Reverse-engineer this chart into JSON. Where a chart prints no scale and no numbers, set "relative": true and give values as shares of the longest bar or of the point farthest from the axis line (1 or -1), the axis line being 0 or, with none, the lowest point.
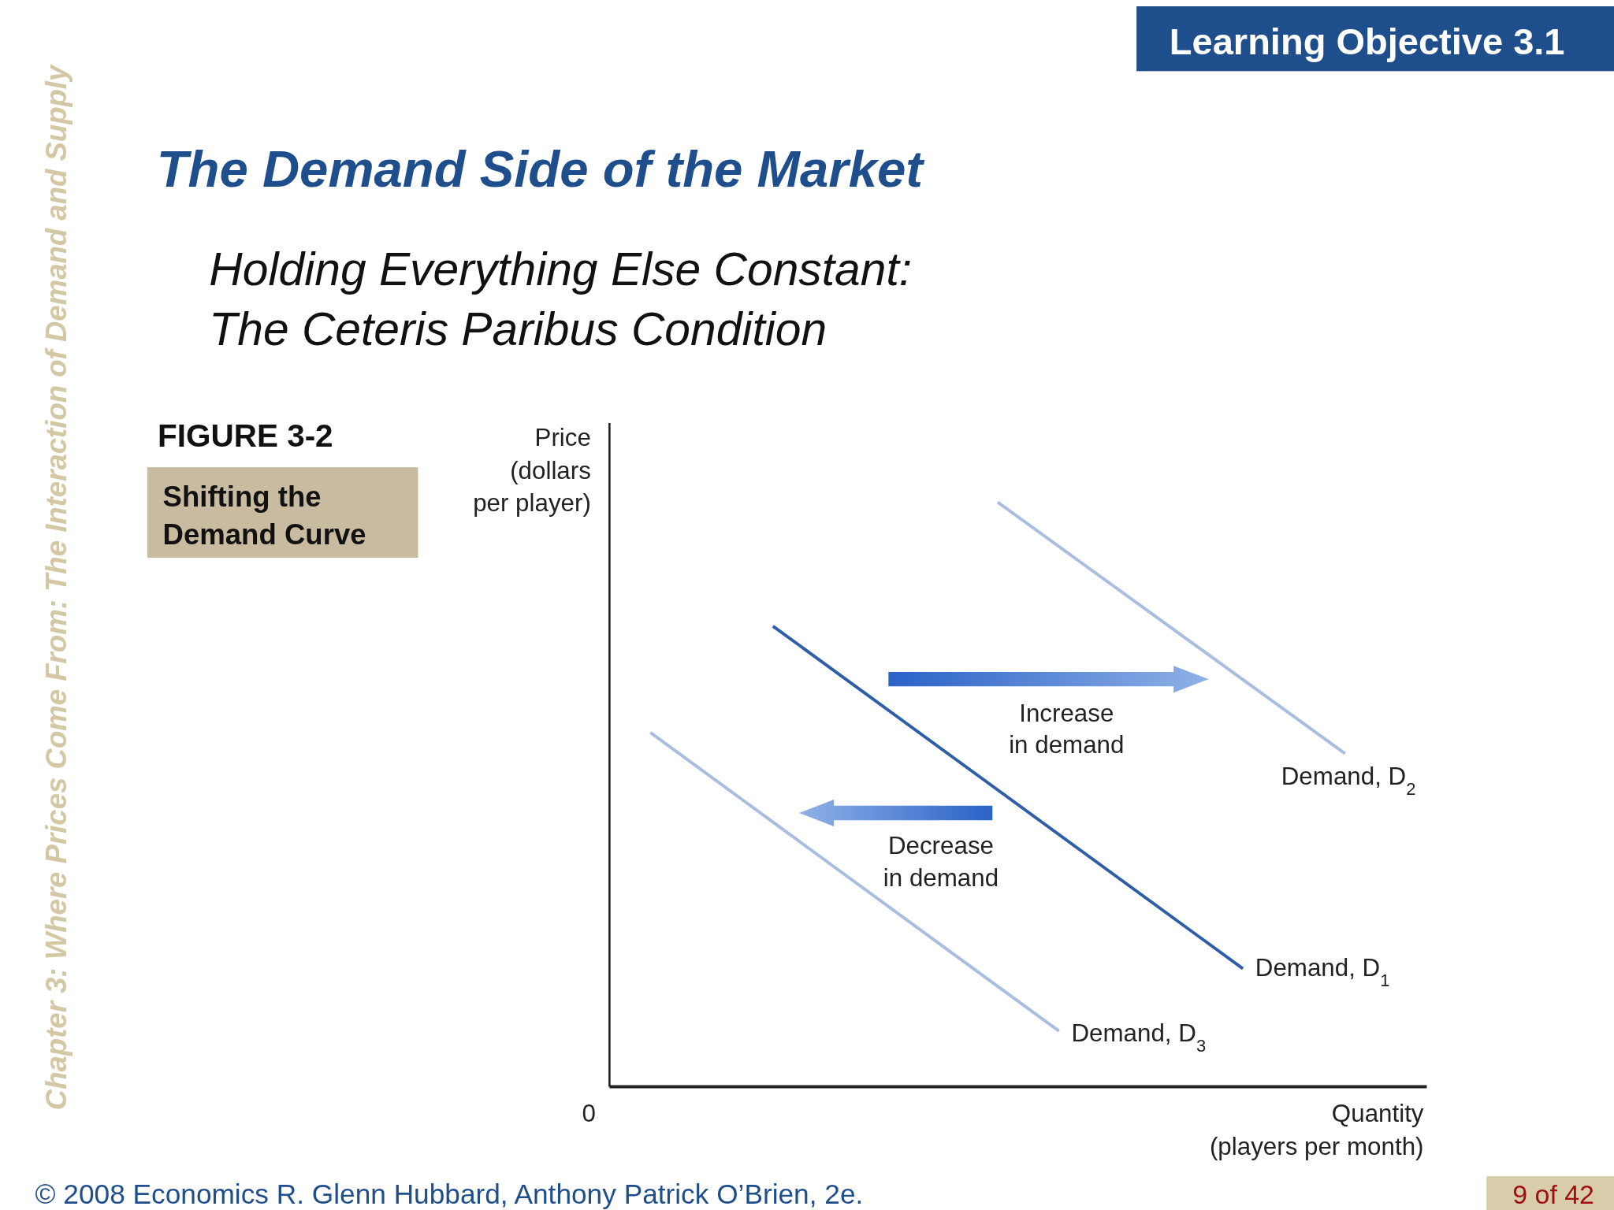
{
  "chart_data": {
    "type": "line",
    "relative": true,
    "title": "The Demand Side of the Market",
    "subtitle": "Holding Everything Else Constant:\nThe Ceteris Paribus Condition",
    "xlabel": "Quantity\n(players per month)",
    "ylabel": "Price\n(dollars\nper player)",
    "marker": "none",
    "line_style": "solid",
    "categories": [
      null,
      null,
      null,
      null,
      null,
      null,
      null,
      null,
      null,
      null,
      null,
      null,
      null,
      null,
      null,
      null,
      null,
      null,
      null,
      null,
      null,
      null,
      null,
      null,
      null,
      null,
      null,
      null,
      null,
      null,
      null,
      null,
      null,
      null,
      null,
      null,
      null,
      null,
      null,
      null,
      null
    ],
    "series": [
      {
        "name": "Demand, D$_{1}$",
        "color": "#2f5ea8",
        "values": [
          null,
          null,
          null,
          null,
          null,
          null,
          null,
          null,
          0.788,
          null,
          null,
          null,
          null,
          null,
          null,
          null,
          null,
          null,
          null,
          null,
          null,
          null,
          null,
          null,
          null,
          null,
          null,
          null,
          null,
          null,
          null,
          0.202,
          null,
          null,
          null,
          null,
          null,
          null,
          null,
          null,
          null
        ]
      },
      {
        "name": "Demand, D$_{2}$",
        "color": "#a9bde0",
        "values": [
          null,
          null,
          null,
          null,
          null,
          null,
          null,
          null,
          null,
          null,
          null,
          null,
          null,
          null,
          null,
          null,
          null,
          null,
          null,
          1,
          null,
          null,
          null,
          null,
          null,
          null,
          null,
          null,
          null,
          null,
          null,
          null,
          null,
          null,
          null,
          null,
          0.57,
          null,
          null,
          null,
          null
        ]
      },
      {
        "name": "Demand, D$_{3}$",
        "color": "#a9bde0",
        "values": [
          null,
          null,
          0.606,
          null,
          null,
          null,
          null,
          null,
          null,
          null,
          null,
          null,
          null,
          null,
          null,
          null,
          null,
          null,
          null,
          null,
          null,
          null,
          0.095,
          null,
          null,
          null,
          null,
          null,
          null,
          null,
          null,
          null,
          null,
          null,
          null,
          null,
          null,
          null,
          null,
          null,
          null
        ]
      }
    ],
    "annotations": [
      "Increase\nin demand",
      "Decrease\nin demand",
      "Learning Objective  3.1",
      "FIGURE 3-2",
      "Shifting the\nDemand Curve",
      "Chapter 3: Where Prices Come From: The Interaction of Demand and Supply",
      "© 2008   Economics  R. Glenn Hubbard, Anthony Patrick O’Brien, 2e.",
      "9 of 42",
      "0"
    ]
  }
}
